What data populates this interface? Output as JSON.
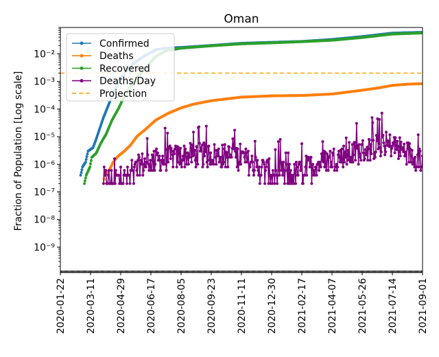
{
  "chart_data": {
    "type": "line",
    "title": "Oman",
    "xlabel": "",
    "ylabel": "Fraction of Population [Log scale]",
    "yscale": "log",
    "ylim": [
      1.2e-10,
      0.09
    ],
    "xlim": [
      "2020-01-22",
      "2021-09-01"
    ],
    "x_ticks": [
      "2020-01-22",
      "2020-03-11",
      "2020-04-29",
      "2020-06-17",
      "2020-08-05",
      "2020-09-23",
      "2020-11-11",
      "2020-12-30",
      "2021-02-17",
      "2021-04-07",
      "2021-05-26",
      "2021-07-14",
      "2021-09-01"
    ],
    "y_ticks": [
      {
        "value": 1e-09,
        "label": "10⁻⁹"
      },
      {
        "value": 1e-08,
        "label": "10⁻⁸"
      },
      {
        "value": 1e-07,
        "label": "10⁻⁷"
      },
      {
        "value": 1e-06,
        "label": "10⁻⁶"
      },
      {
        "value": 1e-05,
        "label": "10⁻⁵"
      },
      {
        "value": 0.0001,
        "label": "10⁻⁴"
      },
      {
        "value": 0.001,
        "label": "10⁻³"
      },
      {
        "value": 0.01,
        "label": "10⁻²"
      }
    ],
    "legend_position": "upper-left",
    "series": [
      {
        "name": "Confirmed",
        "color": "#1f77b4",
        "style": "line-dot",
        "points": [
          [
            "2020-02-24",
            4e-07
          ],
          [
            "2020-02-27",
            8e-07
          ],
          [
            "2020-03-03",
            1.2e-06
          ],
          [
            "2020-03-07",
            3e-06
          ],
          [
            "2020-03-15",
            4e-06
          ],
          [
            "2020-03-20",
            8e-06
          ],
          [
            "2020-03-26",
            2e-05
          ],
          [
            "2020-04-01",
            5e-05
          ],
          [
            "2020-04-08",
            0.00012
          ],
          [
            "2020-04-15",
            0.0003
          ],
          [
            "2020-04-25",
            0.0009
          ],
          [
            "2020-05-05",
            0.002
          ],
          [
            "2020-05-20",
            0.0045
          ],
          [
            "2020-06-05",
            0.008
          ],
          [
            "2020-06-25",
            0.014
          ],
          [
            "2020-07-10",
            0.016
          ],
          [
            "2020-08-05",
            0.017
          ],
          [
            "2020-09-23",
            0.02
          ],
          [
            "2020-11-11",
            0.024
          ],
          [
            "2020-12-30",
            0.026
          ],
          [
            "2021-02-17",
            0.028
          ],
          [
            "2021-04-07",
            0.033
          ],
          [
            "2021-05-26",
            0.042
          ],
          [
            "2021-07-14",
            0.056
          ],
          [
            "2021-09-01",
            0.06
          ]
        ]
      },
      {
        "name": "Deaths",
        "color": "#ff7f0e",
        "style": "line-dot",
        "points": [
          [
            "2020-04-01",
            2e-07
          ],
          [
            "2020-04-03",
            4e-07
          ],
          [
            "2020-04-10",
            6e-07
          ],
          [
            "2020-04-17",
            1.2e-06
          ],
          [
            "2020-04-25",
            2e-06
          ],
          [
            "2020-05-05",
            3e-06
          ],
          [
            "2020-05-15",
            5e-06
          ],
          [
            "2020-05-25",
            1e-05
          ],
          [
            "2020-06-10",
            2e-05
          ],
          [
            "2020-06-25",
            4e-05
          ],
          [
            "2020-07-15",
            7e-05
          ],
          [
            "2020-08-05",
            0.00011
          ],
          [
            "2020-08-25",
            0.00015
          ],
          [
            "2020-09-23",
            0.0002
          ],
          [
            "2020-11-11",
            0.00027
          ],
          [
            "2020-12-30",
            0.0003
          ],
          [
            "2021-02-17",
            0.00031
          ],
          [
            "2021-04-07",
            0.00035
          ],
          [
            "2021-05-26",
            0.00048
          ],
          [
            "2021-06-25",
            0.0006
          ],
          [
            "2021-07-14",
            0.00072
          ],
          [
            "2021-08-10",
            0.0008
          ],
          [
            "2021-09-01",
            0.00083
          ]
        ]
      },
      {
        "name": "Recovered",
        "color": "#2ca02c",
        "style": "line-dot",
        "points": [
          [
            "2020-03-01",
            2e-07
          ],
          [
            "2020-03-04",
            4e-07
          ],
          [
            "2020-03-10",
            8e-07
          ],
          [
            "2020-03-13",
            1.8e-06
          ],
          [
            "2020-03-20",
            2.5e-06
          ],
          [
            "2020-03-28",
            6e-06
          ],
          [
            "2020-04-05",
            1.2e-05
          ],
          [
            "2020-04-15",
            4e-05
          ],
          [
            "2020-04-25",
            0.0001
          ],
          [
            "2020-05-05",
            0.0003
          ],
          [
            "2020-05-15",
            0.0007
          ],
          [
            "2020-05-25",
            0.0013
          ],
          [
            "2020-06-08",
            0.003
          ],
          [
            "2020-06-25",
            0.008
          ],
          [
            "2020-07-12",
            0.013
          ],
          [
            "2020-08-05",
            0.016
          ],
          [
            "2020-09-23",
            0.0195
          ],
          [
            "2020-11-11",
            0.023
          ],
          [
            "2020-12-30",
            0.025
          ],
          [
            "2021-02-17",
            0.0275
          ],
          [
            "2021-04-07",
            0.031
          ],
          [
            "2021-05-26",
            0.039
          ],
          [
            "2021-07-14",
            0.052
          ],
          [
            "2021-09-01",
            0.057
          ]
        ]
      },
      {
        "name": "Deaths/Day",
        "color": "#800080",
        "style": "line-dot-noisy",
        "start": "2020-04-01",
        "end": "2021-09-01",
        "anchors": [
          [
            "2020-04-01",
            2.6e-07
          ],
          [
            "2020-05-15",
            3.5e-07
          ],
          [
            "2020-06-01",
            1e-06
          ],
          [
            "2020-07-01",
            1.4e-06
          ],
          [
            "2020-08-05",
            2e-06
          ],
          [
            "2020-09-23",
            2.2e-06
          ],
          [
            "2020-11-11",
            1.8e-06
          ],
          [
            "2020-12-01",
            9e-07
          ],
          [
            "2021-01-01",
            5e-07
          ],
          [
            "2021-02-01",
            4e-07
          ],
          [
            "2021-03-10",
            9e-07
          ],
          [
            "2021-04-07",
            1.6e-06
          ],
          [
            "2021-05-26",
            3e-06
          ],
          [
            "2021-06-25",
            5e-06
          ],
          [
            "2021-07-14",
            5e-06
          ],
          [
            "2021-08-10",
            2.5e-06
          ],
          [
            "2021-09-01",
            1.5e-06
          ]
        ]
      },
      {
        "name": "Projection",
        "color": "#ffa500",
        "style": "dashed",
        "value": 0.002
      }
    ]
  }
}
